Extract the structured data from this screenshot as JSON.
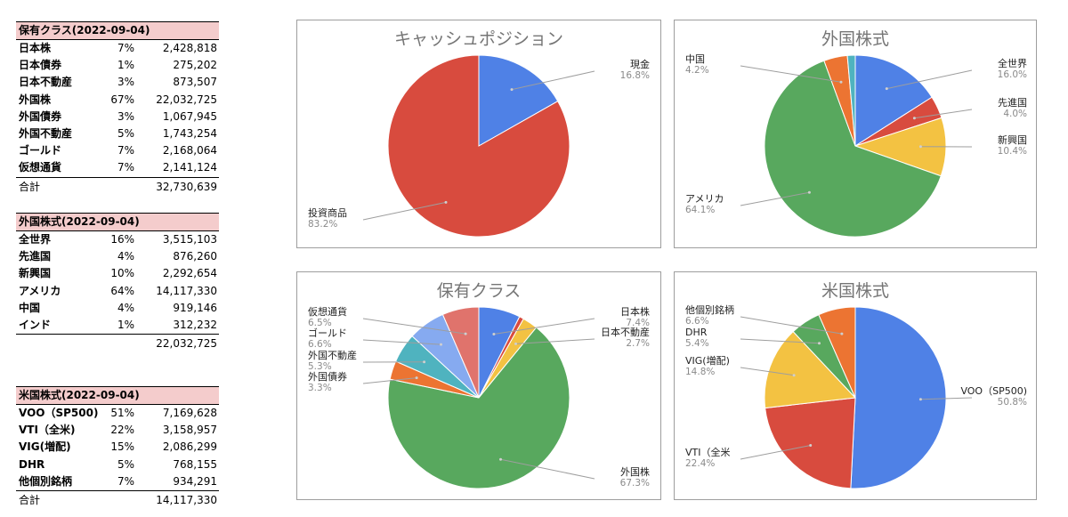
{
  "tables": [
    {
      "header": "保有クラス(2022-09-04)",
      "rows": [
        {
          "name": "日本株",
          "pct": "7%",
          "amount": "2,428,818"
        },
        {
          "name": "日本債券",
          "pct": "1%",
          "amount": "275,202"
        },
        {
          "name": "日本不動産",
          "pct": "3%",
          "amount": "873,507"
        },
        {
          "name": "外国株",
          "pct": "67%",
          "amount": "22,032,725"
        },
        {
          "name": "外国債券",
          "pct": "3%",
          "amount": "1,067,945"
        },
        {
          "name": "外国不動産",
          "pct": "5%",
          "amount": "1,743,254"
        },
        {
          "name": "ゴールド",
          "pct": "7%",
          "amount": "2,168,064"
        },
        {
          "name": "仮想通貨",
          "pct": "7%",
          "amount": "2,141,124"
        }
      ],
      "total_label": "合計",
      "total": "32,730,639"
    },
    {
      "header": "外国株式(2022-09-04)",
      "rows": [
        {
          "name": "全世界",
          "pct": "16%",
          "amount": "3,515,103"
        },
        {
          "name": "先進国",
          "pct": "4%",
          "amount": "876,260"
        },
        {
          "name": "新興国",
          "pct": "10%",
          "amount": "2,292,654"
        },
        {
          "name": "アメリカ",
          "pct": "64%",
          "amount": "14,117,330"
        },
        {
          "name": "中国",
          "pct": "4%",
          "amount": "919,146"
        },
        {
          "name": "インド",
          "pct": "1%",
          "amount": "312,232"
        }
      ],
      "total_label": "合計",
      "total": "22,032,725"
    },
    {
      "header": "米国株式(2022-09-04)",
      "rows": [
        {
          "name": "VOO（SP500)",
          "pct": "51%",
          "amount": "7,169,628"
        },
        {
          "name": "VTI（全米)",
          "pct": "22%",
          "amount": "3,158,957"
        },
        {
          "name": "VIG(増配)",
          "pct": "15%",
          "amount": "2,086,299"
        },
        {
          "name": "DHR",
          "pct": "5%",
          "amount": "768,155"
        },
        {
          "name": "他個別銘柄",
          "pct": "7%",
          "amount": "934,291"
        }
      ],
      "total_label": "合計",
      "total": "14,117,330"
    }
  ],
  "chart_data": [
    {
      "type": "pie",
      "title": "キャッシュポジション",
      "slices": [
        {
          "label": "現金",
          "value": 16.8,
          "pct_label": "16.8%",
          "color": "#4f81e6"
        },
        {
          "label": "投資商品",
          "value": 83.2,
          "pct_label": "83.2%",
          "color": "#d84b3e"
        }
      ]
    },
    {
      "type": "pie",
      "title": "外国株式",
      "slices": [
        {
          "label": "全世界",
          "value": 16.0,
          "pct_label": "16.0%",
          "color": "#4f81e6"
        },
        {
          "label": "先進国",
          "value": 4.0,
          "pct_label": "4.0%",
          "color": "#d84b3e"
        },
        {
          "label": "新興国",
          "value": 10.4,
          "pct_label": "10.4%",
          "color": "#f3c242"
        },
        {
          "label": "アメリカ",
          "value": 64.1,
          "pct_label": "64.1%",
          "color": "#58a85e"
        },
        {
          "label": "中国",
          "value": 4.2,
          "pct_label": "4.2%",
          "color": "#ec7432"
        },
        {
          "label": "",
          "value": 1.4,
          "pct_label": "",
          "color": "#4fb3bf"
        }
      ]
    },
    {
      "type": "pie",
      "title": "保有クラス",
      "slices": [
        {
          "label": "日本株",
          "value": 7.4,
          "pct_label": "7.4%",
          "color": "#4f81e6"
        },
        {
          "label": "",
          "value": 0.8,
          "pct_label": "",
          "color": "#d84b3e"
        },
        {
          "label": "日本不動産",
          "value": 2.7,
          "pct_label": "2.7%",
          "color": "#f3c242"
        },
        {
          "label": "外国株",
          "value": 67.3,
          "pct_label": "67.3%",
          "color": "#58a85e"
        },
        {
          "label": "外国債券",
          "value": 3.3,
          "pct_label": "3.3%",
          "color": "#ec7432"
        },
        {
          "label": "外国不動産",
          "value": 5.3,
          "pct_label": "5.3%",
          "color": "#4fb3bf"
        },
        {
          "label": "ゴールド",
          "value": 6.6,
          "pct_label": "6.6%",
          "color": "#86aaf0"
        },
        {
          "label": "仮想通貨",
          "value": 6.5,
          "pct_label": "6.5%",
          "color": "#e0736c"
        }
      ]
    },
    {
      "type": "pie",
      "title": "米国株式",
      "slices": [
        {
          "label": "VOO（SP500)",
          "value": 50.8,
          "pct_label": "50.8%",
          "color": "#4f81e6"
        },
        {
          "label": "VTI（全米",
          "value": 22.4,
          "pct_label": "22.4%",
          "color": "#d84b3e"
        },
        {
          "label": "VIG(増配)",
          "value": 14.8,
          "pct_label": "14.8%",
          "color": "#f3c242"
        },
        {
          "label": "DHR",
          "value": 5.4,
          "pct_label": "5.4%",
          "color": "#58a85e"
        },
        {
          "label": "他個別銘柄",
          "value": 6.6,
          "pct_label": "6.6%",
          "color": "#ec7432"
        }
      ]
    }
  ]
}
